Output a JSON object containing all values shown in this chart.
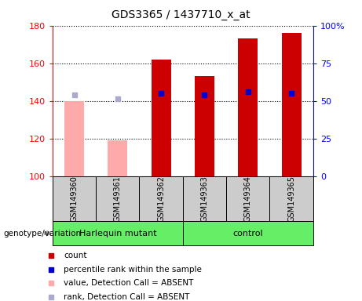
{
  "title": "GDS3365 / 1437710_x_at",
  "samples": [
    "GSM149360",
    "GSM149361",
    "GSM149362",
    "GSM149363",
    "GSM149364",
    "GSM149365"
  ],
  "count_values": [
    140,
    119,
    162,
    153,
    173,
    176
  ],
  "count_absent": [
    true,
    true,
    false,
    false,
    false,
    false
  ],
  "rank_values": [
    143,
    141,
    144,
    143,
    145,
    144
  ],
  "rank_absent": [
    true,
    true,
    false,
    false,
    false,
    false
  ],
  "ylim_left": [
    100,
    180
  ],
  "ylim_right": [
    0,
    100
  ],
  "left_ticks": [
    100,
    120,
    140,
    160,
    180
  ],
  "right_ticks": [
    0,
    25,
    50,
    75,
    100
  ],
  "right_tick_labels": [
    "0",
    "25",
    "50",
    "75",
    "100%"
  ],
  "bar_width": 0.45,
  "count_color_present": "#cc0000",
  "count_color_absent": "#ffaaaa",
  "rank_color_present": "#0000cc",
  "rank_color_absent": "#aaaacc",
  "plot_bg": "#ffffff",
  "genotype_label": "genotype/variation",
  "group1_label": "Harlequin mutant",
  "group2_label": "control",
  "group_color": "#66ee66",
  "sample_box_color": "#cccccc",
  "legend_items": [
    "count",
    "percentile rank within the sample",
    "value, Detection Call = ABSENT",
    "rank, Detection Call = ABSENT"
  ]
}
